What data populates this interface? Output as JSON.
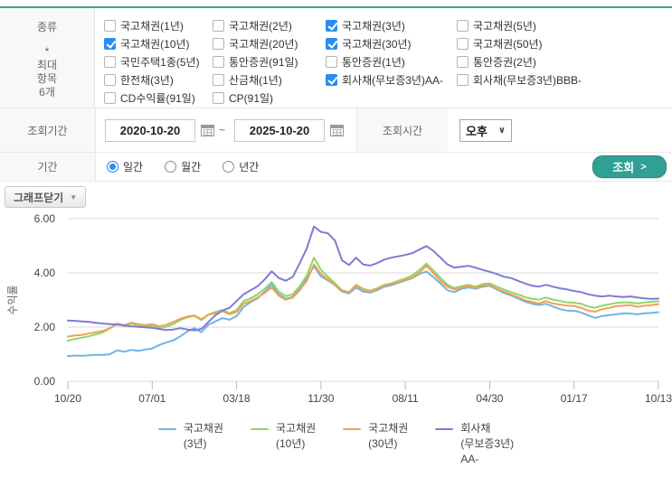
{
  "form": {
    "type_label": "종류",
    "type_note": "*\n최대\n항목\n6개",
    "checkbox_rows": [
      [
        {
          "label": "국고채권(1년)",
          "checked": false
        },
        {
          "label": "국고채권(2년)",
          "checked": false
        },
        {
          "label": "국고채권(3년)",
          "checked": true
        },
        {
          "label": "국고채권(5년)",
          "checked": false
        }
      ],
      [
        {
          "label": "국고채권(10년)",
          "checked": true
        },
        {
          "label": "국고채권(20년)",
          "checked": false
        },
        {
          "label": "국고채권(30년)",
          "checked": true
        },
        {
          "label": "국고채권(50년)",
          "checked": false
        }
      ],
      [
        {
          "label": "국민주택1종(5년)",
          "checked": false
        },
        {
          "label": "통안증권(91일)",
          "checked": false
        },
        {
          "label": "통안증권(1년)",
          "checked": false
        },
        {
          "label": "통안증권(2년)",
          "checked": false
        }
      ],
      [
        {
          "label": "한전채(3년)",
          "checked": false
        },
        {
          "label": "산금채(1년)",
          "checked": false
        },
        {
          "label": "회사채(무보증3년)AA-",
          "checked": true
        },
        {
          "label": "회사채(무보증3년)BBB-",
          "checked": false
        }
      ],
      [
        {
          "label": "CD수익률(91일)",
          "checked": false
        },
        {
          "label": "CP(91일)",
          "checked": false
        }
      ]
    ],
    "period_label": "조회기간",
    "date_from": "2020-10-20",
    "date_to": "2025-10-20",
    "date_separator": "~",
    "time_label": "조회시간",
    "time_value": "오후",
    "interval_label": "기간",
    "interval_options": [
      {
        "label": "일간",
        "selected": true
      },
      {
        "label": "월간",
        "selected": false
      },
      {
        "label": "년간",
        "selected": false
      }
    ],
    "search_button": "조회",
    "graph_toggle_button": "그래프닫기"
  },
  "icons": {
    "select_chevron": "∨",
    "button_caret": "▼",
    "search_arrow": ">"
  },
  "colors": {
    "accent_teal": "#2FA093",
    "top_border_teal": "#3BA299",
    "checkbox_blue": "#2B8DF0",
    "gridline": "#d9d9d9"
  },
  "chart_data": {
    "type": "line",
    "ylabel": "수익률",
    "ylim": [
      0,
      6
    ],
    "yticks": [
      0,
      2,
      4,
      6
    ],
    "ytick_labels": [
      "0.00",
      "2.00",
      "4.00",
      "6.00"
    ],
    "xtick_labels": [
      "10/20",
      "07/01",
      "03/18",
      "11/30",
      "08/11",
      "04/30",
      "01/17",
      "10/13"
    ],
    "grid": true,
    "legend_position": "bottom",
    "series": [
      {
        "name": "국고채권(3년)",
        "legend_lines": [
          "국고채권",
          "(3년)"
        ],
        "color": "#73B3E3",
        "values": [
          0.93,
          0.95,
          0.94,
          0.96,
          0.98,
          0.97,
          1.0,
          1.14,
          1.09,
          1.16,
          1.12,
          1.17,
          1.21,
          1.34,
          1.43,
          1.51,
          1.66,
          1.84,
          1.96,
          1.81,
          2.09,
          2.21,
          2.33,
          2.27,
          2.41,
          2.74,
          2.92,
          3.06,
          3.31,
          3.57,
          3.22,
          3.04,
          3.12,
          3.46,
          3.82,
          4.24,
          3.87,
          3.72,
          3.54,
          3.31,
          3.24,
          3.46,
          3.31,
          3.27,
          3.36,
          3.49,
          3.54,
          3.63,
          3.71,
          3.81,
          3.96,
          4.05,
          3.84,
          3.61,
          3.36,
          3.29,
          3.41,
          3.46,
          3.41,
          3.49,
          3.52,
          3.39,
          3.26,
          3.17,
          3.06,
          2.94,
          2.86,
          2.81,
          2.86,
          2.76,
          2.66,
          2.61,
          2.6,
          2.54,
          2.43,
          2.34,
          2.41,
          2.44,
          2.47,
          2.51,
          2.5,
          2.47,
          2.51,
          2.52,
          2.55
        ]
      },
      {
        "name": "국고채권(10년)",
        "legend_lines": [
          "국고채권",
          "(10년)"
        ],
        "color": "#8CD76C",
        "values": [
          1.5,
          1.56,
          1.61,
          1.66,
          1.73,
          1.81,
          1.96,
          2.11,
          2.04,
          2.13,
          2.07,
          2.01,
          2.06,
          1.96,
          2.01,
          2.11,
          2.26,
          2.36,
          2.41,
          2.26,
          2.46,
          2.56,
          2.63,
          2.51,
          2.63,
          2.96,
          3.06,
          3.21,
          3.41,
          3.66,
          3.31,
          3.14,
          3.21,
          3.51,
          3.91,
          4.56,
          4.11,
          3.86,
          3.61,
          3.36,
          3.29,
          3.56,
          3.41,
          3.34,
          3.43,
          3.56,
          3.61,
          3.71,
          3.79,
          3.91,
          4.11,
          4.34,
          4.09,
          3.81,
          3.56,
          3.44,
          3.51,
          3.56,
          3.49,
          3.59,
          3.61,
          3.49,
          3.39,
          3.29,
          3.21,
          3.11,
          3.04,
          3.01,
          3.09,
          3.01,
          2.96,
          2.91,
          2.9,
          2.86,
          2.76,
          2.71,
          2.79,
          2.84,
          2.89,
          2.91,
          2.91,
          2.87,
          2.91,
          2.93,
          2.95
        ]
      },
      {
        "name": "국고채권(30년)",
        "legend_lines": [
          "국고채권",
          "(30년)"
        ],
        "color": "#F3A053",
        "values": [
          1.65,
          1.69,
          1.71,
          1.76,
          1.81,
          1.86,
          1.96,
          2.13,
          2.07,
          2.16,
          2.11,
          2.07,
          2.11,
          2.03,
          2.09,
          2.19,
          2.31,
          2.39,
          2.43,
          2.29,
          2.46,
          2.51,
          2.59,
          2.47,
          2.56,
          2.86,
          2.96,
          3.09,
          3.26,
          3.46,
          3.16,
          3.01,
          3.09,
          3.36,
          3.71,
          4.31,
          3.96,
          3.76,
          3.56,
          3.34,
          3.29,
          3.53,
          3.39,
          3.31,
          3.41,
          3.53,
          3.59,
          3.66,
          3.73,
          3.83,
          4.01,
          4.26,
          3.99,
          3.71,
          3.49,
          3.39,
          3.46,
          3.51,
          3.44,
          3.53,
          3.56,
          3.41,
          3.31,
          3.21,
          3.11,
          2.99,
          2.93,
          2.87,
          2.96,
          2.87,
          2.83,
          2.79,
          2.78,
          2.71,
          2.61,
          2.57,
          2.66,
          2.71,
          2.77,
          2.79,
          2.81,
          2.75,
          2.79,
          2.81,
          2.85
        ]
      },
      {
        "name": "회사채(무보증3년)AA-",
        "legend_lines": [
          "회사채",
          "(무보증3년)",
          "AA-"
        ],
        "color": "#7F7AD8",
        "values": [
          2.24,
          2.23,
          2.21,
          2.19,
          2.16,
          2.13,
          2.11,
          2.09,
          2.06,
          2.03,
          2.01,
          1.99,
          1.97,
          1.93,
          1.89,
          1.91,
          1.96,
          1.91,
          1.88,
          1.93,
          2.19,
          2.44,
          2.61,
          2.71,
          2.96,
          3.21,
          3.36,
          3.51,
          3.76,
          4.06,
          3.81,
          3.71,
          3.86,
          4.36,
          4.91,
          5.71,
          5.51,
          5.46,
          5.19,
          4.46,
          4.29,
          4.56,
          4.31,
          4.27,
          4.36,
          4.49,
          4.56,
          4.61,
          4.66,
          4.73,
          4.86,
          4.99,
          4.81,
          4.56,
          4.31,
          4.19,
          4.23,
          4.26,
          4.19,
          4.11,
          4.04,
          3.96,
          3.86,
          3.81,
          3.71,
          3.61,
          3.53,
          3.49,
          3.56,
          3.49,
          3.43,
          3.39,
          3.33,
          3.29,
          3.21,
          3.16,
          3.13,
          3.16,
          3.13,
          3.11,
          3.13,
          3.09,
          3.06,
          3.04,
          3.05
        ]
      }
    ]
  }
}
